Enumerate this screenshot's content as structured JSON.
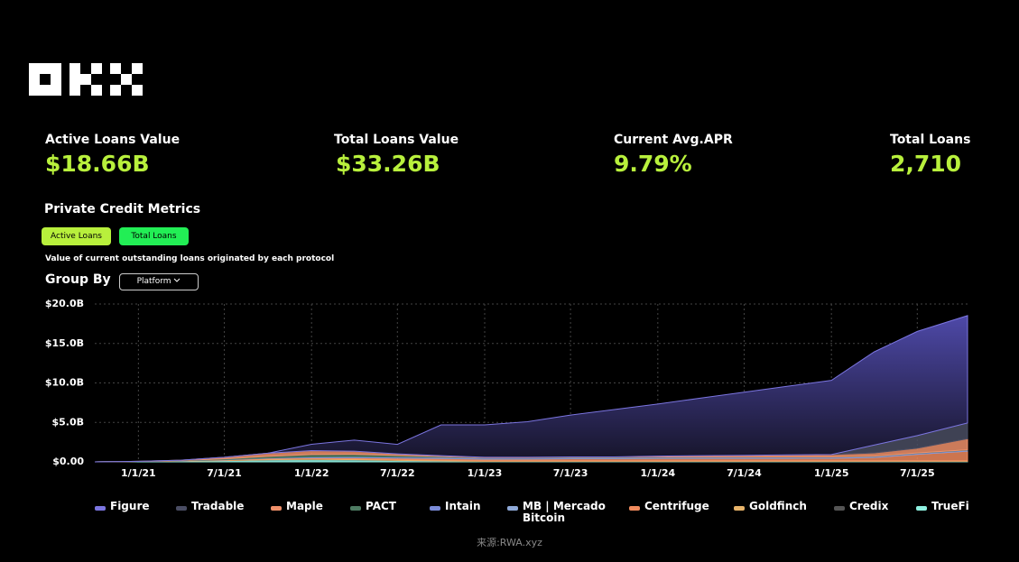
{
  "header": {
    "metrics": [
      {
        "label": "Active Loans Value",
        "value": "$18.66B"
      },
      {
        "label": "Total Loans Value",
        "value": "$33.26B"
      },
      {
        "label": "Current Avg.APR",
        "value": "9.79%"
      },
      {
        "label": "Total Loans",
        "value": "2,710"
      }
    ]
  },
  "section_title": "Private Credit Metrics",
  "tabs": [
    "Active Loans",
    "Total Loans"
  ],
  "description": "Value of current outstanding loans originated by each protocol",
  "group_by": {
    "label": "Group By",
    "selected": "Platform"
  },
  "source": "来源:RWA.xyz",
  "chart_data": {
    "type": "area",
    "x": [
      "10/1/20",
      "1/1/21",
      "4/1/21",
      "7/1/21",
      "10/1/21",
      "1/1/22",
      "4/1/22",
      "7/1/22",
      "10/1/22",
      "1/1/23",
      "4/1/23",
      "7/1/23",
      "10/1/23",
      "1/1/24",
      "4/1/24",
      "7/1/24",
      "10/1/24",
      "1/1/25",
      "4/1/25",
      "7/1/25",
      "10/15/25"
    ],
    "xlim": [
      "10/1/20",
      "10/15/25"
    ],
    "xticks": [
      "1/1/21",
      "7/1/21",
      "1/1/22",
      "7/1/22",
      "1/1/23",
      "7/1/23",
      "1/1/24",
      "7/1/24",
      "1/1/25",
      "7/1/25"
    ],
    "ylim": [
      0,
      20
    ],
    "yticks": [
      {
        "value": 0,
        "label": "$0.00"
      },
      {
        "value": 5,
        "label": "$5.0B"
      },
      {
        "value": 10,
        "label": "$10.0B"
      },
      {
        "value": 15,
        "label": "$15.0B"
      },
      {
        "value": 20,
        "label": "$20.0B"
      }
    ],
    "grid": true,
    "stacked": true,
    "series": [
      {
        "name": "Figure",
        "color": "#7b75e0",
        "values": [
          0,
          0,
          0,
          0,
          0,
          0.8,
          1.4,
          1.2,
          3.9,
          4.1,
          4.5,
          5.3,
          6.0,
          6.6,
          7.3,
          8.0,
          8.7,
          9.4,
          11.8,
          13.2,
          13.6
        ]
      },
      {
        "name": "Tradable",
        "color": "#4a4d63",
        "values": [
          0,
          0,
          0,
          0,
          0,
          0,
          0,
          0,
          0,
          0,
          0,
          0,
          0,
          0,
          0,
          0,
          0,
          0,
          1.0,
          1.6,
          2.0
        ]
      },
      {
        "name": "Maple",
        "color": "#f0906a",
        "values": [
          0,
          0.02,
          0.05,
          0.2,
          0.4,
          0.5,
          0.4,
          0.2,
          0.1,
          0.05,
          0.05,
          0.05,
          0.05,
          0.1,
          0.15,
          0.2,
          0.25,
          0.3,
          0.4,
          0.6,
          1.4
        ]
      },
      {
        "name": "PACT",
        "color": "#4e7b62",
        "values": [
          0,
          0,
          0.03,
          0.1,
          0.2,
          0.3,
          0.3,
          0.2,
          0.1,
          0.05,
          0.05,
          0.05,
          0.05,
          0.05,
          0.05,
          0.05,
          0.05,
          0.05,
          0.05,
          0.05,
          0.05
        ]
      },
      {
        "name": "Intain",
        "color": "#7b8bd8",
        "values": [
          0,
          0,
          0,
          0.02,
          0.05,
          0.08,
          0.1,
          0.1,
          0.1,
          0.08,
          0.08,
          0.08,
          0.08,
          0.08,
          0.08,
          0.08,
          0.08,
          0.08,
          0.08,
          0.08,
          0.08
        ]
      },
      {
        "name": "MB | Mercado Bitcoin",
        "color": "#8fa9d8",
        "values": [
          0,
          0,
          0,
          0,
          0,
          0.02,
          0.03,
          0.04,
          0.05,
          0.05,
          0.05,
          0.05,
          0.05,
          0.05,
          0.05,
          0.05,
          0.05,
          0.05,
          0.05,
          0.05,
          0.05
        ]
      },
      {
        "name": "Centrifuge",
        "color": "#f08a5d",
        "values": [
          0,
          0,
          0.02,
          0.05,
          0.1,
          0.1,
          0.15,
          0.2,
          0.2,
          0.2,
          0.2,
          0.25,
          0.25,
          0.3,
          0.3,
          0.3,
          0.3,
          0.3,
          0.4,
          0.8,
          1.2
        ]
      },
      {
        "name": "Goldfinch",
        "color": "#e8b46a",
        "values": [
          0,
          0,
          0.02,
          0.05,
          0.08,
          0.1,
          0.1,
          0.1,
          0.1,
          0.08,
          0.08,
          0.08,
          0.08,
          0.08,
          0.08,
          0.08,
          0.08,
          0.08,
          0.08,
          0.08,
          0.08
        ]
      },
      {
        "name": "Credix",
        "color": "#555555",
        "values": [
          0,
          0,
          0,
          0.01,
          0.02,
          0.03,
          0.03,
          0.03,
          0.03,
          0.02,
          0.02,
          0.02,
          0.02,
          0.02,
          0.02,
          0.02,
          0.02,
          0.02,
          0.02,
          0.02,
          0.02
        ]
      },
      {
        "name": "TrueFi",
        "color": "#8ef0e0",
        "values": [
          0,
          0.05,
          0.1,
          0.15,
          0.25,
          0.3,
          0.25,
          0.15,
          0.1,
          0.05,
          0.05,
          0.05,
          0.05,
          0.05,
          0.05,
          0.05,
          0.05,
          0.05,
          0.05,
          0.05,
          0.05
        ]
      }
    ]
  }
}
